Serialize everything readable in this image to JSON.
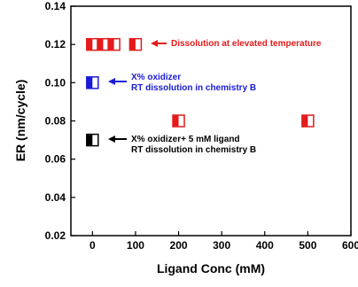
{
  "chart_data": {
    "type": "scatter",
    "title": "",
    "xlabel": "Ligand Conc (mM)",
    "ylabel": "ER (nm/cycle)",
    "xlim": [
      -50,
      600
    ],
    "ylim": [
      0.02,
      0.14
    ],
    "xticks": [
      "0",
      "100",
      "200",
      "300",
      "400",
      "500",
      "600"
    ],
    "yticks": [
      "0.02",
      "0.04",
      "0.06",
      "0.08",
      "0.10",
      "0.12",
      "0.14"
    ],
    "grid": false,
    "marker": "half-filled square",
    "series": [
      {
        "color": "#e41a1c",
        "points": [
          {
            "x": 0,
            "y": 0.12
          },
          {
            "x": 25,
            "y": 0.12
          },
          {
            "x": 50,
            "y": 0.12
          },
          {
            "x": 100,
            "y": 0.12
          },
          {
            "x": 200,
            "y": 0.08
          },
          {
            "x": 500,
            "y": 0.08
          }
        ]
      },
      {
        "color": "#1a1ad8",
        "points": [
          {
            "x": 0,
            "y": 0.1
          }
        ]
      },
      {
        "color": "#000000",
        "points": [
          {
            "x": 0,
            "y": 0.07
          }
        ]
      }
    ],
    "annotations": [
      {
        "color": "#e41a1c",
        "lines": [
          "Dissolution at elevated temperature"
        ]
      },
      {
        "color": "#1a1ad8",
        "lines": [
          "X% oxidizer",
          "RT dissolution in chemistry B"
        ]
      },
      {
        "color": "#000000",
        "lines": [
          "X% oxidizer+ 5 mM ligand",
          "RT dissolution in chemistry B"
        ]
      }
    ]
  }
}
